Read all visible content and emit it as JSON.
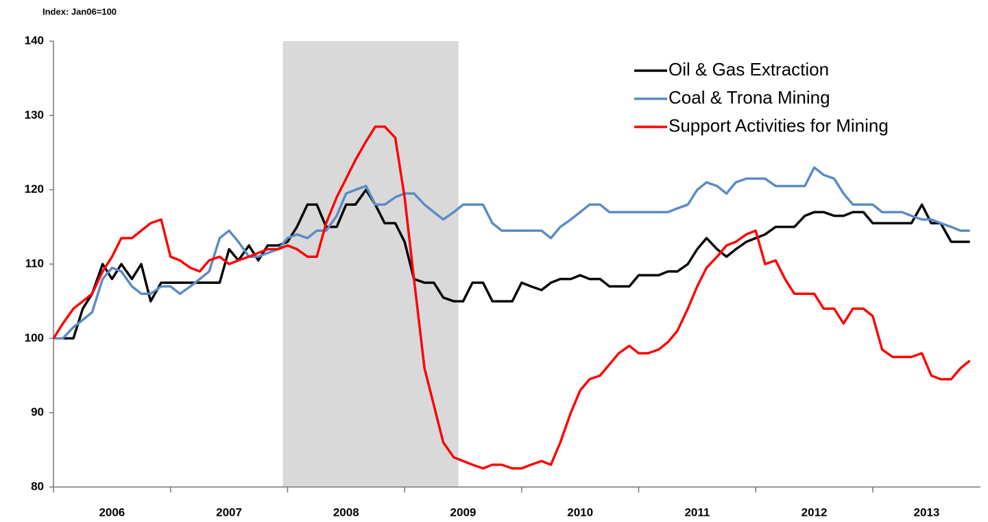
{
  "chart_data": {
    "type": "line",
    "title": "Index: Jan06=100",
    "x": [
      2006,
      2006.08,
      2006.17,
      2006.25,
      2006.33,
      2006.42,
      2006.5,
      2006.58,
      2006.67,
      2006.75,
      2006.83,
      2006.92,
      2007,
      2007.08,
      2007.17,
      2007.25,
      2007.33,
      2007.42,
      2007.5,
      2007.58,
      2007.67,
      2007.75,
      2007.83,
      2007.92,
      2008,
      2008.08,
      2008.17,
      2008.25,
      2008.33,
      2008.42,
      2008.5,
      2008.58,
      2008.67,
      2008.75,
      2008.83,
      2008.92,
      2009,
      2009.08,
      2009.17,
      2009.25,
      2009.33,
      2009.42,
      2009.5,
      2009.58,
      2009.67,
      2009.75,
      2009.83,
      2009.92,
      2010,
      2010.08,
      2010.17,
      2010.25,
      2010.33,
      2010.42,
      2010.5,
      2010.58,
      2010.67,
      2010.75,
      2010.83,
      2010.92,
      2011,
      2011.08,
      2011.17,
      2011.25,
      2011.33,
      2011.42,
      2011.5,
      2011.58,
      2011.67,
      2011.75,
      2011.83,
      2011.92,
      2012,
      2012.08,
      2012.17,
      2012.25,
      2012.33,
      2012.42,
      2012.5,
      2012.58,
      2012.67,
      2012.75,
      2012.83,
      2012.92,
      2013,
      2013.08,
      2013.17,
      2013.25,
      2013.33,
      2013.42,
      2013.5,
      2013.58,
      2013.67,
      2013.75,
      2013.83
    ],
    "series": [
      {
        "name": "Oil & Gas Extraction",
        "color": "#000000",
        "values": [
          100,
          100,
          100,
          104,
          106,
          110,
          108,
          110,
          108,
          110,
          105,
          107.5,
          107.5,
          107.5,
          107.5,
          107.5,
          107.5,
          107.5,
          112,
          110.5,
          112.5,
          110.5,
          112.5,
          112.5,
          113,
          115,
          118,
          118,
          115,
          115,
          118,
          118,
          120,
          118,
          115.5,
          115.5,
          113,
          108,
          107.5,
          107.5,
          105.5,
          105,
          105,
          107.5,
          107.5,
          105,
          105,
          105,
          107.5,
          107,
          106.5,
          107.5,
          108,
          108,
          108.5,
          108,
          108,
          107,
          107,
          107,
          108.5,
          108.5,
          108.5,
          109,
          109,
          110,
          112,
          113.5,
          112,
          111,
          112,
          113,
          113.5,
          114,
          115,
          115,
          115,
          116.5,
          117,
          117,
          116.5,
          116.5,
          117,
          117,
          115.5,
          115.5,
          115.5,
          115.5,
          115.5,
          118,
          115.5,
          115.5,
          113,
          113,
          113
        ]
      },
      {
        "name": "Coal & Trona Mining",
        "color": "#5b8bc5",
        "values": [
          100,
          100,
          101.5,
          102.5,
          103.5,
          108,
          109.5,
          109,
          107,
          106,
          106,
          107,
          107,
          106,
          107,
          108,
          109,
          113.5,
          114.5,
          113,
          111,
          111,
          111.5,
          112,
          113.5,
          114,
          113.5,
          114.5,
          114.5,
          116.5,
          119.5,
          120,
          120.5,
          118,
          118,
          119,
          119.5,
          119.5,
          118,
          117,
          116,
          117,
          118,
          118,
          118,
          115.5,
          114.5,
          114.5,
          114.5,
          114.5,
          114.5,
          113.5,
          115,
          116,
          117,
          118,
          118,
          117,
          117,
          117,
          117,
          117,
          117,
          117,
          117.5,
          118,
          120,
          121,
          120.5,
          119.5,
          121,
          121.5,
          121.5,
          121.5,
          120.5,
          120.5,
          120.5,
          120.5,
          123,
          122,
          121.5,
          119.5,
          118,
          118,
          118,
          117,
          117,
          117,
          116.5,
          116,
          116,
          115.5,
          115,
          114.5,
          114.5
        ]
      },
      {
        "name": "Support Activities for Mining",
        "color": "#ff0000",
        "values": [
          100,
          102,
          104,
          105,
          106,
          109,
          111,
          113.5,
          113.5,
          114.5,
          115.5,
          116,
          111,
          110.5,
          109.5,
          109,
          110.5,
          111,
          110,
          110.5,
          111,
          111.5,
          112,
          112,
          112.5,
          112,
          111,
          111,
          115.5,
          119,
          121.5,
          124,
          126.5,
          128.5,
          128.5,
          127,
          119,
          108,
          96,
          91,
          86,
          84,
          83.5,
          83,
          82.5,
          83,
          83,
          82.5,
          82.5,
          83,
          83.5,
          83,
          86,
          90,
          93,
          94.5,
          95,
          96.5,
          98,
          99,
          98,
          98,
          98.5,
          99.5,
          101,
          104,
          107,
          109.5,
          111,
          112.5,
          113,
          114,
          114.5,
          110,
          110.5,
          108,
          106,
          106,
          106,
          104,
          104,
          102,
          104,
          104,
          103,
          98.5,
          97.5,
          97.5,
          97.5,
          98,
          95,
          94.5,
          94.5,
          96,
          97
        ]
      }
    ],
    "xlim": [
      2006,
      2013.92
    ],
    "xticks": [
      2006,
      2007,
      2008,
      2009,
      2010,
      2011,
      2012,
      2013
    ],
    "ylim": [
      80,
      140
    ],
    "yticks": [
      80,
      90,
      100,
      110,
      120,
      130,
      140
    ],
    "shaded_x": [
      2007.96,
      2009.46
    ],
    "shade_color": "#d9d9d9",
    "legend": "top-right",
    "grid": false
  }
}
